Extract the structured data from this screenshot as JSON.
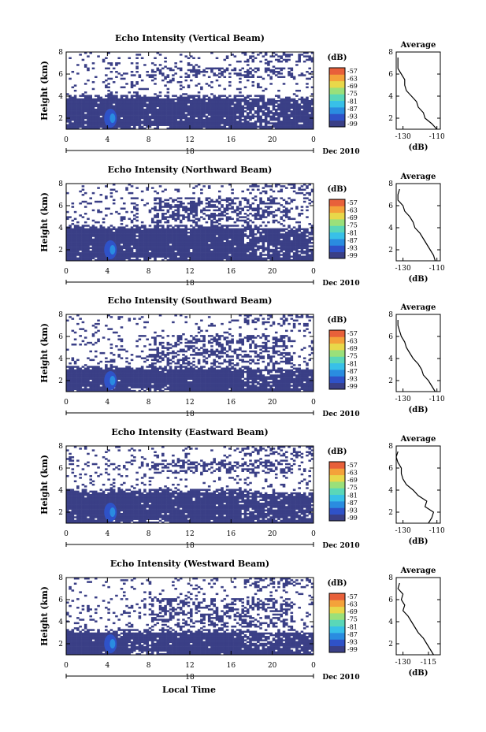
{
  "figure": {
    "xlabel": "Local Time",
    "date_label": "Dec 2010",
    "day_label": "18",
    "colorbar_unit": "(dB)",
    "colorbar_ticks": [
      "-57",
      "-63",
      "-69",
      "-75",
      "-81",
      "-87",
      "-93",
      "-99"
    ],
    "colorbar_colors": [
      "#3a3f86",
      "#2f52c8",
      "#2a8ce0",
      "#38c0e8",
      "#5ad7b8",
      "#9ae07a",
      "#e8d84a",
      "#f4a23a",
      "#e8603a"
    ],
    "avg_title": "Average",
    "avg_unit": "(dB)"
  },
  "chart_data": [
    {
      "type": "heatmap",
      "title": "Echo Intensity (Vertical Beam)",
      "ylabel": "Height (km)",
      "x_ticks": [
        "0",
        "4",
        "8",
        "12",
        "16",
        "20",
        "0"
      ],
      "y_ticks": [
        "2",
        "4",
        "6",
        "8"
      ],
      "xlim": [
        0,
        24
      ],
      "ylim": [
        1.0,
        8.0
      ],
      "base_echo_top_km": 3.8,
      "upper_layer_km": [
        5.6,
        6.6
      ],
      "avg_profile": {
        "x_ticks": [
          "-130",
          "-110"
        ],
        "y_ticks": [
          "2",
          "4",
          "6",
          "8"
        ],
        "height_km": [
          1.0,
          1.5,
          2.0,
          2.5,
          3.0,
          3.5,
          4.0,
          4.5,
          5.0,
          5.5,
          6.0,
          6.5,
          7.0,
          7.5
        ],
        "db": [
          -110,
          -113,
          -117,
          -118,
          -121,
          -122,
          -125,
          -128,
          -129,
          -129,
          -131,
          -133,
          -133,
          -133
        ]
      }
    },
    {
      "type": "heatmap",
      "title": "Echo Intensity (Northward Beam)",
      "ylabel": "Height (km)",
      "x_ticks": [
        "0",
        "4",
        "8",
        "12",
        "16",
        "20",
        "0"
      ],
      "y_ticks": [
        "2",
        "4",
        "6",
        "8"
      ],
      "xlim": [
        0,
        24
      ],
      "ylim": [
        1.0,
        8.0
      ],
      "base_echo_top_km": 3.9,
      "upper_layer_km": [
        4.4,
        6.7
      ],
      "avg_profile": {
        "x_ticks": [
          "-130",
          "-110"
        ],
        "y_ticks": [
          "2",
          "4",
          "6",
          "8"
        ],
        "height_km": [
          1.0,
          1.5,
          2.0,
          2.5,
          3.0,
          3.5,
          4.0,
          4.5,
          5.0,
          5.5,
          6.0,
          6.5,
          7.0,
          7.5
        ],
        "db": [
          -111,
          -112,
          -114,
          -116,
          -118,
          -120,
          -123,
          -124,
          -126,
          -129,
          -130,
          -133,
          -133,
          -132
        ]
      }
    },
    {
      "type": "heatmap",
      "title": "Echo Intensity (Southward Beam)",
      "ylabel": "Height (km)",
      "x_ticks": [
        "0",
        "4",
        "8",
        "12",
        "16",
        "20",
        "0"
      ],
      "y_ticks": [
        "2",
        "4",
        "6",
        "8"
      ],
      "xlim": [
        0,
        24
      ],
      "ylim": [
        1.0,
        8.0
      ],
      "base_echo_top_km": 3.0,
      "upper_layer_km": [
        3.5,
        6.2
      ],
      "avg_profile": {
        "x_ticks": [
          "-130",
          "-110"
        ],
        "y_ticks": [
          "2",
          "4",
          "6",
          "8"
        ],
        "height_km": [
          1.0,
          1.5,
          2.0,
          2.5,
          3.0,
          3.5,
          4.0,
          4.5,
          5.0,
          5.5,
          6.0,
          6.5,
          7.0,
          7.5
        ],
        "db": [
          -111,
          -113,
          -115,
          -118,
          -119,
          -121,
          -124,
          -126,
          -128,
          -129,
          -131,
          -132,
          -133,
          -133
        ]
      }
    },
    {
      "type": "heatmap",
      "title": "Echo Intensity (Eastward Beam)",
      "ylabel": "Height (km)",
      "x_ticks": [
        "0",
        "4",
        "8",
        "12",
        "16",
        "20",
        "0"
      ],
      "y_ticks": [
        "2",
        "4",
        "6",
        "8"
      ],
      "xlim": [
        0,
        24
      ],
      "ylim": [
        1.0,
        8.0
      ],
      "base_echo_top_km": 3.8,
      "upper_layer_km": [
        5.5,
        6.7
      ],
      "avg_profile": {
        "x_ticks": [
          "-130",
          "-110"
        ],
        "y_ticks": [
          "2",
          "4",
          "6",
          "8"
        ],
        "height_km": [
          1.0,
          1.5,
          2.0,
          2.5,
          3.0,
          3.5,
          4.0,
          4.5,
          5.0,
          5.5,
          6.0,
          6.5,
          7.0,
          7.5
        ],
        "db": [
          -115,
          -113,
          -112,
          -117,
          -116,
          -121,
          -124,
          -128,
          -130,
          -131,
          -131,
          -133,
          -134,
          -133
        ]
      }
    },
    {
      "type": "heatmap",
      "title": "Echo Intensity (Westward Beam)",
      "ylabel": "Height (km)",
      "x_ticks": [
        "0",
        "4",
        "8",
        "12",
        "16",
        "20",
        "0"
      ],
      "y_ticks": [
        "2",
        "4",
        "6",
        "8"
      ],
      "xlim": [
        0,
        24
      ],
      "ylim": [
        1.0,
        8.0
      ],
      "base_echo_top_km": 3.0,
      "upper_layer_km": [
        3.5,
        6.2
      ],
      "avg_profile": {
        "x_ticks": [
          "-130",
          "-115"
        ],
        "y_ticks": [
          "2",
          "4",
          "6",
          "8"
        ],
        "height_km": [
          1.0,
          1.5,
          2.0,
          2.5,
          3.0,
          3.5,
          4.0,
          4.5,
          5.0,
          5.5,
          6.0,
          6.5,
          7.0,
          7.5
        ],
        "db": [
          -112,
          -114,
          -116,
          -118,
          -121,
          -123,
          -125,
          -127,
          -130,
          -129,
          -131,
          -130,
          -133,
          -132
        ]
      }
    }
  ]
}
